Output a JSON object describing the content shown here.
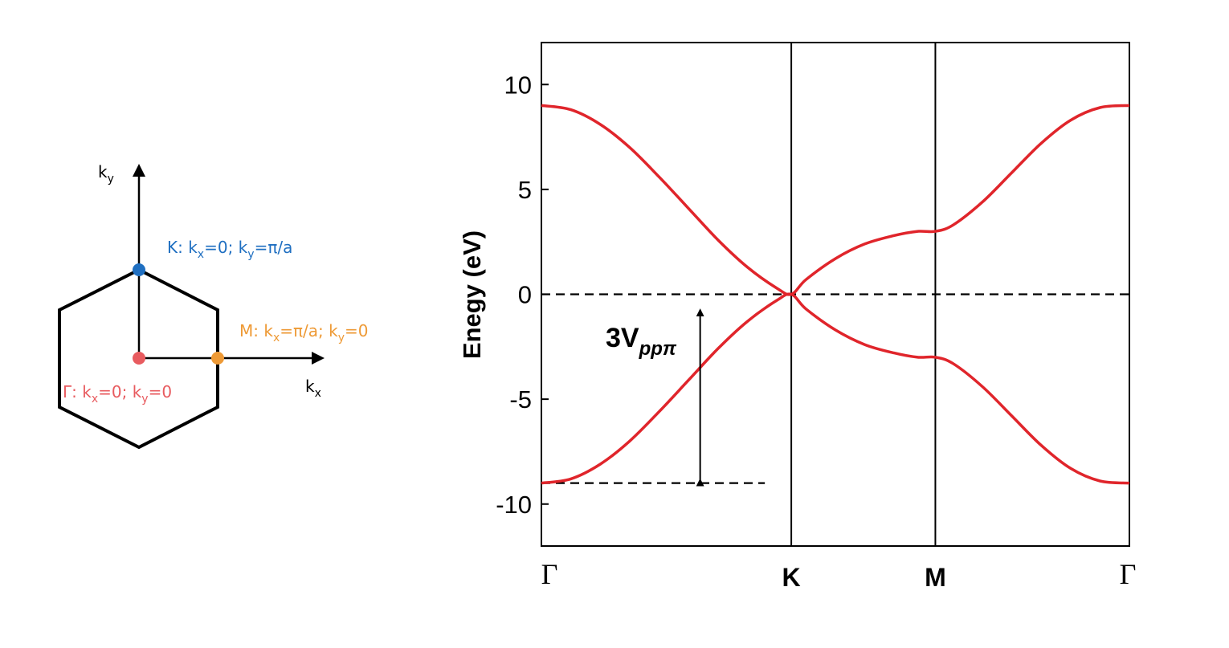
{
  "brillouin_zone": {
    "kx_axis": "k",
    "kx_sub": "x",
    "ky_axis": "k",
    "ky_sub": "y",
    "points": {
      "K": {
        "name": "K",
        "color": "#1F6FC1",
        "seg": [
          {
            "t": "K: k"
          },
          {
            "t": "x",
            "sub": true
          },
          {
            "t": "=0; k"
          },
          {
            "t": "y",
            "sub": true
          },
          {
            "t": "=π/a"
          }
        ]
      },
      "M": {
        "name": "M",
        "color": "#EE9A36",
        "seg": [
          {
            "t": "M: k"
          },
          {
            "t": "x",
            "sub": true
          },
          {
            "t": "=π/a; k"
          },
          {
            "t": "y",
            "sub": true
          },
          {
            "t": "=0"
          }
        ]
      },
      "G": {
        "name": "Γ",
        "color": "#E85B5F",
        "seg": [
          {
            "t": "Γ: k"
          },
          {
            "t": "x",
            "sub": true
          },
          {
            "t": "=0; k"
          },
          {
            "t": "y",
            "sub": true
          },
          {
            "t": "=0"
          }
        ]
      }
    }
  },
  "chart_data": {
    "type": "line",
    "title": "",
    "ylabel": "Enegy (eV)",
    "xlabel": "",
    "ylim": [
      -12,
      12
    ],
    "yticks": [
      10,
      5,
      0,
      -5,
      -10
    ],
    "ytick_labels": [
      "10",
      "5",
      "0",
      "-5",
      "-10"
    ],
    "x_points": [
      {
        "label": "Γ",
        "pos": 0
      },
      {
        "label": "K",
        "pos": 0.425
      },
      {
        "label": "M",
        "pos": 0.67
      },
      {
        "label": "Γ",
        "pos": 1
      }
    ],
    "series_color": "#E0252B",
    "series": [
      {
        "x": [
          0,
          0.05,
          0.1,
          0.15,
          0.2,
          0.25,
          0.3,
          0.35,
          0.4,
          0.425,
          0.45,
          0.5,
          0.55,
          0.6,
          0.64,
          0.67,
          0.7,
          0.75,
          0.8,
          0.85,
          0.9,
          0.95,
          1
        ],
        "values": [
          9.0,
          8.8,
          8.1,
          7.0,
          5.6,
          4.1,
          2.6,
          1.3,
          0.3,
          0.0,
          0.7,
          1.7,
          2.4,
          2.8,
          3.0,
          3.0,
          3.3,
          4.4,
          5.8,
          7.2,
          8.3,
          8.9,
          9.0
        ]
      },
      {
        "x": [
          0,
          0.05,
          0.1,
          0.15,
          0.2,
          0.25,
          0.3,
          0.35,
          0.4,
          0.425,
          0.45,
          0.5,
          0.55,
          0.6,
          0.64,
          0.67,
          0.7,
          0.75,
          0.8,
          0.85,
          0.9,
          0.95,
          1
        ],
        "values": [
          -9.0,
          -8.8,
          -8.1,
          -7.0,
          -5.6,
          -4.1,
          -2.6,
          -1.3,
          -0.3,
          0.0,
          -0.7,
          -1.7,
          -2.4,
          -2.8,
          -3.0,
          -3.0,
          -3.3,
          -4.4,
          -5.8,
          -7.2,
          -8.3,
          -8.9,
          -9.0
        ]
      }
    ],
    "fermi_level": 0,
    "lower_band_edge": -9.0,
    "annotation": {
      "main": "3V",
      "sub": "ppπ",
      "from": -0.6,
      "to": -9.0
    }
  }
}
